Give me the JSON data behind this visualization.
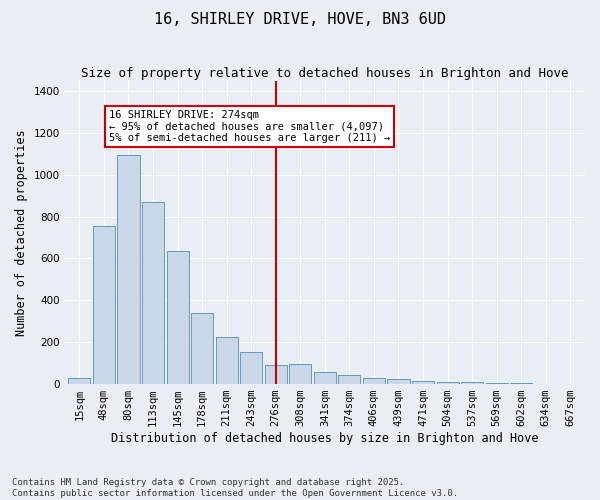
{
  "title": "16, SHIRLEY DRIVE, HOVE, BN3 6UD",
  "subtitle": "Size of property relative to detached houses in Brighton and Hove",
  "xlabel": "Distribution of detached houses by size in Brighton and Hove",
  "ylabel": "Number of detached properties",
  "categories": [
    "15sqm",
    "48sqm",
    "80sqm",
    "113sqm",
    "145sqm",
    "178sqm",
    "211sqm",
    "243sqm",
    "276sqm",
    "308sqm",
    "341sqm",
    "374sqm",
    "406sqm",
    "439sqm",
    "471sqm",
    "504sqm",
    "537sqm",
    "569sqm",
    "602sqm",
    "634sqm",
    "667sqm"
  ],
  "values": [
    28,
    757,
    1095,
    870,
    635,
    340,
    225,
    155,
    90,
    95,
    60,
    45,
    30,
    25,
    15,
    10,
    8,
    5,
    3,
    2,
    2
  ],
  "bar_color": "#c8d8e8",
  "bar_edge_color": "#6699bb",
  "vline_x_index": 8,
  "vline_color": "#cc0000",
  "annotation_text": "16 SHIRLEY DRIVE: 274sqm\n← 95% of detached houses are smaller (4,097)\n5% of semi-detached houses are larger (211) →",
  "annotation_box_color": "#ffffff",
  "annotation_box_edge_color": "#cc0000",
  "ylim": [
    0,
    1450
  ],
  "yticks": [
    0,
    200,
    400,
    600,
    800,
    1000,
    1200,
    1400
  ],
  "footnote1": "Contains HM Land Registry data © Crown copyright and database right 2025.",
  "footnote2": "Contains public sector information licensed under the Open Government Licence v3.0.",
  "background_color": "#e8eef4",
  "title_fontsize": 11,
  "subtitle_fontsize": 9,
  "xlabel_fontsize": 8.5,
  "ylabel_fontsize": 8.5,
  "tick_fontsize": 7.5,
  "annotation_fontsize": 7.5,
  "footnote_fontsize": 6.5
}
